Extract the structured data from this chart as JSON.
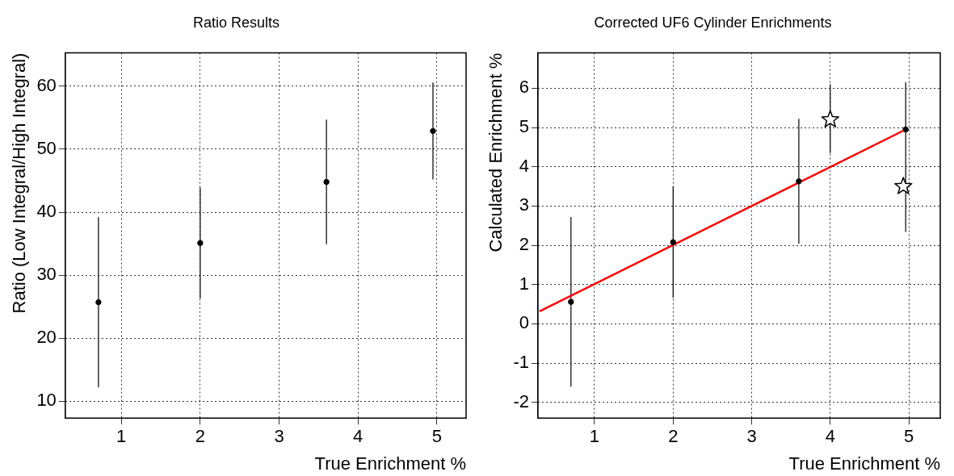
{
  "chart_data": [
    {
      "type": "scatter",
      "title": "Ratio Results",
      "xlabel": "True Enrichment %",
      "ylabel": "Ratio (Low Integral/High Integral)",
      "xlim": [
        0.29,
        5.37
      ],
      "xticks": [
        1,
        2,
        3,
        4,
        5
      ],
      "ylim": [
        7.3,
        65.3
      ],
      "yticks": [
        10,
        20,
        30,
        40,
        50,
        60
      ],
      "grid": true,
      "marker": "circle",
      "series": [
        {
          "color": "#000000",
          "x": [
            0.71,
            2.0,
            3.6,
            4.95
          ],
          "values": [
            25.7,
            35.1,
            44.8,
            52.9
          ],
          "errors": [
            13.5,
            8.8,
            9.9,
            7.7
          ]
        }
      ]
    },
    {
      "type": "scatter",
      "title": "Corrected UF6 Cylinder Enrichments",
      "xlabel": "True Enrichment %",
      "ylabel": "Calculated Enrichment %",
      "xlim": [
        0.28,
        5.4
      ],
      "xticks": [
        1,
        2,
        3,
        4,
        5
      ],
      "ylim": [
        -2.4,
        6.9
      ],
      "yticks": [
        -2,
        -1,
        0,
        1,
        2,
        3,
        4,
        5,
        6
      ],
      "grid": true,
      "series": [
        {
          "type": "line",
          "color": "#ff0000",
          "x": [
            0.3,
            4.96
          ],
          "values": [
            0.32,
            4.95
          ],
          "marker": "none",
          "line_style": "solid"
        },
        {
          "color": "#000000",
          "x": [
            0.7,
            2.0,
            3.6,
            4.96
          ],
          "values": [
            0.56,
            2.08,
            3.63,
            4.95
          ],
          "errors": [
            2.16,
            1.42,
            1.59,
            [
              2.34,
              6.15
            ]
          ],
          "marker": "circle"
        },
        {
          "color": "#000000",
          "x": [
            4.0,
            4.93
          ],
          "values": [
            5.2,
            3.5
          ],
          "errors": [
            [
              4.35,
              6.1
            ],
            null
          ],
          "marker": "star"
        }
      ]
    }
  ]
}
